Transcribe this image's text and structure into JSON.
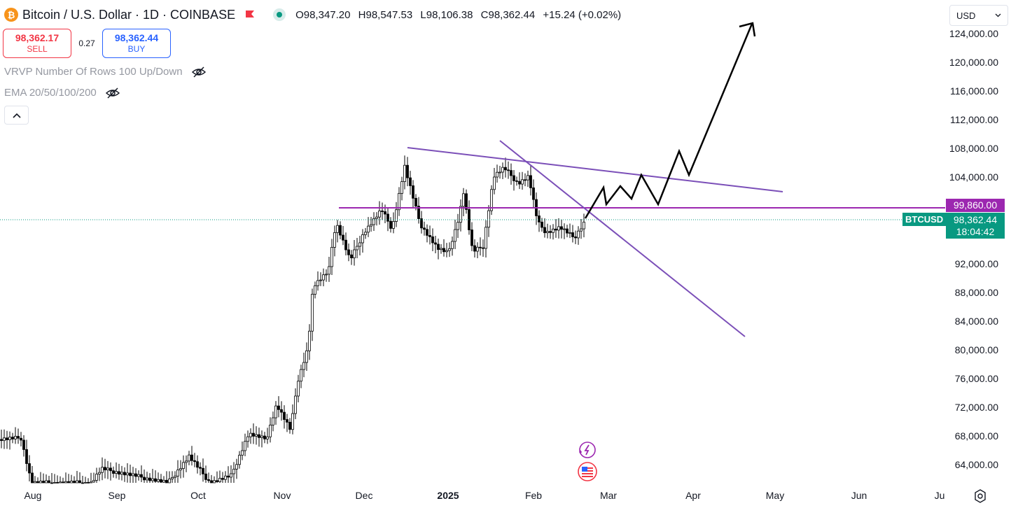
{
  "header": {
    "logo_glyph": "₿",
    "symbol_title": "Bitcoin / U.S. Dollar · 1D · COINBASE",
    "open": "O98,347.20",
    "high": "H98,547.53",
    "low": "L98,106.38",
    "close": "C98,362.44",
    "change": "+15.24 (+0.02%)"
  },
  "trade": {
    "sell_price": "98,362.17",
    "sell_label": "SELL",
    "spread": "0.27",
    "buy_price": "98,362.44",
    "buy_label": "BUY"
  },
  "indicators": [
    {
      "label": "VRVP Number Of Rows 100 Up/Down"
    },
    {
      "label": "EMA 20/50/100/200"
    }
  ],
  "currency_select": {
    "value": "USD"
  },
  "price_axis": {
    "ticks": [
      "124,000.00",
      "120,000.00",
      "116,000.00",
      "112,000.00",
      "108,000.00",
      "104,000.00",
      "92,000.00",
      "88,000.00",
      "84,000.00",
      "80,000.00",
      "76,000.00",
      "72,000.00",
      "68,000.00",
      "64,000.00"
    ]
  },
  "time_axis": {
    "ticks": [
      "Aug",
      "Sep",
      "Oct",
      "Nov",
      "Dec",
      "2025",
      "Feb",
      "Mar",
      "Apr",
      "May",
      "Jun",
      "Ju"
    ]
  },
  "labels": {
    "level_price": "99,860.00",
    "symbol_tag": "BTCUSD",
    "last_price": "98,362.44",
    "countdown": "18:04:42"
  },
  "colors": {
    "up": "#089981",
    "level_line": "#9c27b0",
    "trend_line": "#7b4fb8",
    "sell": "#f23645",
    "buy": "#2962ff",
    "candle": "#000000"
  },
  "icons": [
    "bitcoin-logo-icon",
    "flag-icon",
    "market-status-icon",
    "eye-off-icon",
    "chevron-up-icon",
    "chevron-down-icon",
    "settings-icon",
    "lightning-icon",
    "us-flag-icon"
  ]
}
